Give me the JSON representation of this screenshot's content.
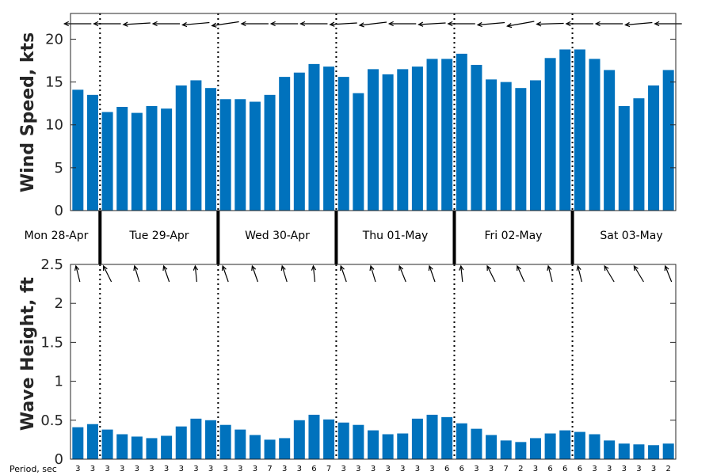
{
  "chart_data": [
    {
      "type": "bar",
      "ylabel": "Wind Speed, kts",
      "ylim": [
        0,
        23
      ],
      "yticks": [
        "0",
        "5",
        "10",
        "15",
        "20"
      ],
      "grid": false,
      "values": [
        14.1,
        13.5,
        11.5,
        12.1,
        11.4,
        12.2,
        11.9,
        14.6,
        15.2,
        14.3,
        13.0,
        13.0,
        12.7,
        13.5,
        15.6,
        16.1,
        17.1,
        16.8,
        15.6,
        13.7,
        16.5,
        15.9,
        16.5,
        16.8,
        17.7,
        17.7,
        18.3,
        17.0,
        15.3,
        15.0,
        14.3,
        15.2,
        17.8,
        18.8,
        18.8,
        17.7,
        16.4,
        12.2,
        13.1,
        14.6,
        16.4
      ],
      "direction_arrows": "wind direction arrows along top edge",
      "bar_color": "#0072bd"
    },
    {
      "type": "bar",
      "ylabel": "Wave Height, ft",
      "ylim": [
        0,
        2.5
      ],
      "yticks": [
        "0",
        "0.5",
        "1",
        "1.5",
        "2",
        "2.5"
      ],
      "grid": false,
      "values": [
        0.41,
        0.45,
        0.38,
        0.32,
        0.29,
        0.27,
        0.3,
        0.42,
        0.52,
        0.5,
        0.44,
        0.38,
        0.31,
        0.25,
        0.27,
        0.5,
        0.57,
        0.51,
        0.47,
        0.44,
        0.37,
        0.32,
        0.33,
        0.52,
        0.57,
        0.54,
        0.46,
        0.39,
        0.31,
        0.24,
        0.22,
        0.27,
        0.33,
        0.37,
        0.35,
        0.32,
        0.24,
        0.2,
        0.19,
        0.18,
        0.2
      ],
      "period_label": "Period, sec",
      "periods": [
        "3",
        "3",
        "3",
        "3",
        "3",
        "3",
        "3",
        "3",
        "3",
        "3",
        "3",
        "3",
        "3",
        "7",
        "3",
        "3",
        "6",
        "7",
        "3",
        "3",
        "3",
        "3",
        "3",
        "3",
        "3",
        "6",
        "6",
        "3",
        "3",
        "7",
        "2",
        "3",
        "6",
        "6",
        "6",
        "3",
        "3",
        "3",
        "3",
        "3",
        "2"
      ],
      "direction_arrows": "wave direction arrows along top edge",
      "bar_color": "#0072bd"
    }
  ],
  "days": [
    "Mon 28-Apr",
    "Tue 29-Apr",
    "Wed 30-Apr",
    "Thu 01-May",
    "Fri 02-May",
    "Sat 03-May"
  ],
  "colors": {
    "bar": "#0072bd",
    "axis": "#262626",
    "arrow": "#000000"
  }
}
